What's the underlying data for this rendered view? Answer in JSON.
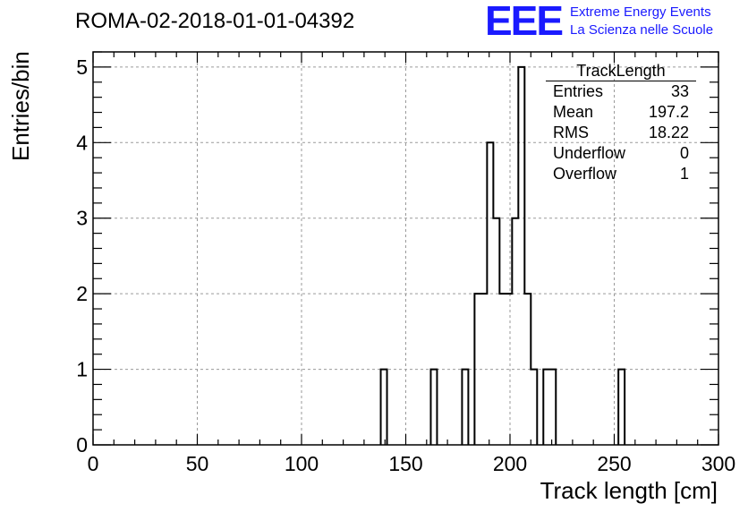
{
  "header": {
    "run_title": "ROMA-02-2018-01-01-04392",
    "logo_text": "EEE",
    "project_line1": "Extreme Energy Events",
    "project_line2": "La Scienza nelle Scuole"
  },
  "stats_box": {
    "name": "TrackLength",
    "rows": [
      {
        "label": "Entries",
        "value": "33"
      },
      {
        "label": "Mean",
        "value": "197.2"
      },
      {
        "label": "RMS",
        "value": "18.22"
      },
      {
        "label": "Underflow",
        "value": "0"
      },
      {
        "label": "Overflow",
        "value": "1"
      }
    ]
  },
  "colors": {
    "line": "#000000",
    "grid": "#9a9a9a",
    "logo": "#1a1aff"
  },
  "chart_data": {
    "type": "bar",
    "style": "step-histogram",
    "title": "",
    "xlabel": "Track length [cm]",
    "ylabel": "Entries/bin",
    "xlim": [
      0,
      300
    ],
    "ylim": [
      0,
      5.2
    ],
    "grid": true,
    "legend": "top-right stats box",
    "bin_width": 3,
    "x_ticks": [
      0,
      50,
      100,
      150,
      200,
      250,
      300
    ],
    "y_ticks": [
      0,
      1,
      2,
      3,
      4,
      5
    ],
    "bins": [
      {
        "x": 138,
        "count": 1
      },
      {
        "x": 162,
        "count": 1
      },
      {
        "x": 177,
        "count": 1
      },
      {
        "x": 183,
        "count": 2
      },
      {
        "x": 186,
        "count": 2
      },
      {
        "x": 189,
        "count": 4
      },
      {
        "x": 192,
        "count": 3
      },
      {
        "x": 195,
        "count": 2
      },
      {
        "x": 198,
        "count": 2
      },
      {
        "x": 201,
        "count": 3
      },
      {
        "x": 204,
        "count": 5
      },
      {
        "x": 207,
        "count": 2
      },
      {
        "x": 210,
        "count": 1
      },
      {
        "x": 216,
        "count": 1
      },
      {
        "x": 219,
        "count": 1
      },
      {
        "x": 252,
        "count": 1
      }
    ]
  }
}
